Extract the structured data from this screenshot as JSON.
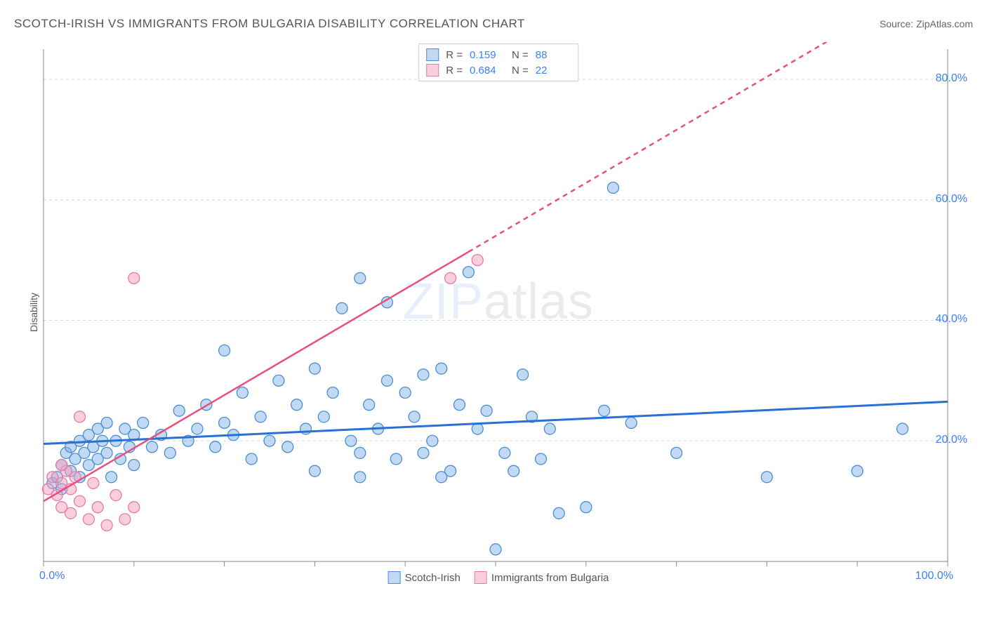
{
  "title": "SCOTCH-IRISH VS IMMIGRANTS FROM BULGARIA DISABILITY CORRELATION CHART",
  "source": "Source: ZipAtlas.com",
  "ylabel": "Disability",
  "watermark": {
    "zip": "ZIP",
    "atlas": "atlas"
  },
  "chart": {
    "type": "scatter",
    "background_color": "#ffffff",
    "grid_color": "#d8d8d8",
    "axis_color": "#888888",
    "xlim": [
      0,
      100
    ],
    "ylim": [
      0,
      85
    ],
    "xtick_positions": [
      0,
      10,
      20,
      30,
      40,
      50,
      60,
      70,
      80,
      90,
      100
    ],
    "xtick_labels_shown": {
      "0": "0.0%",
      "100": "100.0%"
    },
    "ytick_positions": [
      20,
      40,
      60,
      80
    ],
    "ytick_labels": [
      "20.0%",
      "40.0%",
      "60.0%",
      "80.0%"
    ],
    "tick_label_color": "#3b82f6",
    "tick_label_fontsize": 16
  },
  "series": [
    {
      "name": "Scotch-Irish",
      "marker_fill": "rgba(120,170,230,0.45)",
      "marker_stroke": "#4a8ed6",
      "marker_radius": 8,
      "trend": {
        "slope": 0.07,
        "intercept": 19.5,
        "x0": 0,
        "x1": 100,
        "stroke": "#2970d6",
        "width": 3,
        "dash": "none"
      },
      "R": "0.159",
      "N": "88",
      "points": [
        [
          1,
          13
        ],
        [
          1.5,
          14
        ],
        [
          2,
          16
        ],
        [
          2,
          12
        ],
        [
          2.5,
          18
        ],
        [
          3,
          15
        ],
        [
          3,
          19
        ],
        [
          3.5,
          17
        ],
        [
          4,
          14
        ],
        [
          4,
          20
        ],
        [
          4.5,
          18
        ],
        [
          5,
          16
        ],
        [
          5,
          21
        ],
        [
          5.5,
          19
        ],
        [
          6,
          17
        ],
        [
          6,
          22
        ],
        [
          6.5,
          20
        ],
        [
          7,
          18
        ],
        [
          7,
          23
        ],
        [
          7.5,
          14
        ],
        [
          8,
          20
        ],
        [
          8.5,
          17
        ],
        [
          9,
          22
        ],
        [
          9.5,
          19
        ],
        [
          10,
          16
        ],
        [
          10,
          21
        ],
        [
          11,
          23
        ],
        [
          12,
          19
        ],
        [
          13,
          21
        ],
        [
          14,
          18
        ],
        [
          15,
          25
        ],
        [
          16,
          20
        ],
        [
          17,
          22
        ],
        [
          18,
          26
        ],
        [
          19,
          19
        ],
        [
          20,
          23
        ],
        [
          20,
          35
        ],
        [
          21,
          21
        ],
        [
          22,
          28
        ],
        [
          23,
          17
        ],
        [
          24,
          24
        ],
        [
          25,
          20
        ],
        [
          26,
          30
        ],
        [
          27,
          19
        ],
        [
          28,
          26
        ],
        [
          29,
          22
        ],
        [
          30,
          32
        ],
        [
          30,
          15
        ],
        [
          31,
          24
        ],
        [
          32,
          28
        ],
        [
          33,
          42
        ],
        [
          34,
          20
        ],
        [
          35,
          18
        ],
        [
          35,
          47
        ],
        [
          36,
          26
        ],
        [
          37,
          22
        ],
        [
          38,
          30
        ],
        [
          38,
          43
        ],
        [
          39,
          17
        ],
        [
          40,
          28
        ],
        [
          41,
          24
        ],
        [
          42,
          31
        ],
        [
          42,
          18
        ],
        [
          43,
          20
        ],
        [
          44,
          32
        ],
        [
          45,
          15
        ],
        [
          46,
          26
        ],
        [
          47,
          48
        ],
        [
          48,
          22
        ],
        [
          49,
          25
        ],
        [
          50,
          2
        ],
        [
          51,
          18
        ],
        [
          52,
          15
        ],
        [
          53,
          31
        ],
        [
          54,
          24
        ],
        [
          55,
          17
        ],
        [
          56,
          22
        ],
        [
          57,
          8
        ],
        [
          60,
          9
        ],
        [
          62,
          25
        ],
        [
          63,
          62
        ],
        [
          65,
          23
        ],
        [
          70,
          18
        ],
        [
          80,
          14
        ],
        [
          90,
          15
        ],
        [
          95,
          22
        ],
        [
          35,
          14
        ],
        [
          44,
          14
        ]
      ]
    },
    {
      "name": "Immigrants from Bulgaria",
      "marker_fill": "rgba(244,160,190,0.5)",
      "marker_stroke": "#e77aa3",
      "marker_radius": 8,
      "trend": {
        "slope": 0.88,
        "intercept": 10,
        "x0": 0,
        "x1": 100,
        "stroke": "#e84f7f",
        "width": 2.5,
        "dash_from_x": 47
      },
      "R": "0.684",
      "N": "22",
      "points": [
        [
          0.5,
          12
        ],
        [
          1,
          14
        ],
        [
          1.5,
          11
        ],
        [
          2,
          13
        ],
        [
          2,
          9
        ],
        [
          2.5,
          15
        ],
        [
          3,
          12
        ],
        [
          3,
          8
        ],
        [
          3.5,
          14
        ],
        [
          4,
          10
        ],
        [
          4,
          24
        ],
        [
          5,
          7
        ],
        [
          5.5,
          13
        ],
        [
          6,
          9
        ],
        [
          7,
          6
        ],
        [
          8,
          11
        ],
        [
          9,
          7
        ],
        [
          10,
          9
        ],
        [
          10,
          47
        ],
        [
          45,
          47
        ],
        [
          48,
          50
        ],
        [
          2,
          16
        ]
      ]
    }
  ],
  "stats_box": {
    "rows": [
      {
        "swatch_fill": "rgba(120,170,230,0.45)",
        "swatch_border": "#4a8ed6",
        "R": "0.159",
        "N": "88"
      },
      {
        "swatch_fill": "rgba(244,160,190,0.5)",
        "swatch_border": "#e77aa3",
        "R": "0.684",
        "N": "22"
      }
    ],
    "labels": {
      "R": "R =",
      "N": "N ="
    }
  },
  "bottom_legend": [
    {
      "swatch_fill": "rgba(120,170,230,0.45)",
      "swatch_border": "#4a8ed6",
      "label": "Scotch-Irish"
    },
    {
      "swatch_fill": "rgba(244,160,190,0.5)",
      "swatch_border": "#e77aa3",
      "label": "Immigrants from Bulgaria"
    }
  ]
}
